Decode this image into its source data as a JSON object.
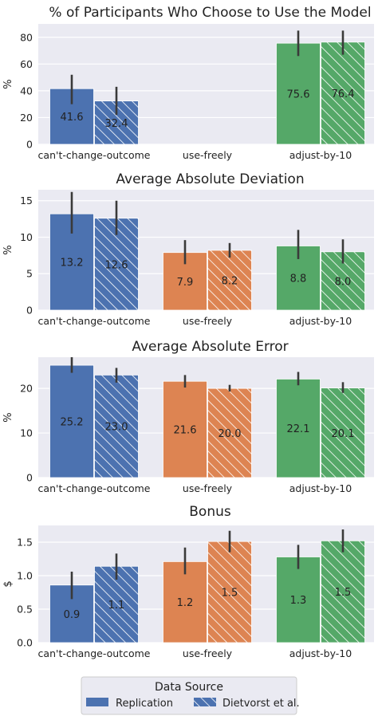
{
  "chart_data": [
    {
      "type": "bar",
      "title": "% of Participants Who Choose to Use the Model",
      "ylabel": "%",
      "ylim": [
        0,
        90
      ],
      "yticks": [
        "0",
        "20",
        "40",
        "60",
        "80"
      ],
      "ytick_values": [
        0,
        20,
        40,
        60,
        80
      ],
      "categories": [
        "can't-change-outcome",
        "use-freely",
        "adjust-by-10"
      ],
      "grid": true,
      "series": [
        {
          "name": "Replication",
          "values": [
            41.6,
            null,
            75.6
          ],
          "error": [
            [
              30,
              52
            ],
            null,
            [
              66,
              85
            ]
          ],
          "labels": [
            "41.6",
            "",
            "75.6"
          ]
        },
        {
          "name": "Dietvorst et al.",
          "values": [
            32.4,
            null,
            76.4
          ],
          "error": [
            [
              22,
              43
            ],
            null,
            [
              67,
              85
            ]
          ],
          "labels": [
            "32.4",
            "",
            "76.4"
          ]
        }
      ]
    },
    {
      "type": "bar",
      "title": "Average Absolute Deviation",
      "ylabel": "%",
      "ylim": [
        0,
        16.5
      ],
      "yticks": [
        "0",
        "5",
        "10",
        "15"
      ],
      "ytick_values": [
        0,
        5,
        10,
        15
      ],
      "categories": [
        "can't-change-outcome",
        "use-freely",
        "adjust-by-10"
      ],
      "grid": true,
      "series": [
        {
          "name": "Replication",
          "values": [
            13.2,
            7.9,
            8.8
          ],
          "error": [
            [
              10.5,
              16.2
            ],
            [
              6.3,
              9.6
            ],
            [
              7,
              11
            ]
          ],
          "labels": [
            "13.2",
            "7.9",
            "8.8"
          ]
        },
        {
          "name": "Dietvorst et al.",
          "values": [
            12.6,
            8.2,
            8.0
          ],
          "error": [
            [
              10.3,
              15
            ],
            [
              7.2,
              9.2
            ],
            [
              6.4,
              9.7
            ]
          ],
          "labels": [
            "12.6",
            "8.2",
            "8.0"
          ]
        }
      ]
    },
    {
      "type": "bar",
      "title": "Average Absolute Error",
      "ylabel": "%",
      "ylim": [
        0,
        27
      ],
      "yticks": [
        "0",
        "10",
        "20"
      ],
      "ytick_values": [
        0,
        10,
        20
      ],
      "categories": [
        "can't-change-outcome",
        "use-freely",
        "adjust-by-10"
      ],
      "grid": true,
      "series": [
        {
          "name": "Replication",
          "values": [
            25.2,
            21.6,
            22.1
          ],
          "error": [
            [
              23.5,
              27
            ],
            [
              20.2,
              23
            ],
            [
              20.7,
              23.7
            ]
          ],
          "labels": [
            "25.2",
            "21.6",
            "22.1"
          ]
        },
        {
          "name": "Dietvorst et al.",
          "values": [
            23.0,
            20.0,
            20.1
          ],
          "error": [
            [
              21.3,
              24.6
            ],
            [
              19.3,
              20.8
            ],
            [
              19,
              21.4
            ]
          ],
          "labels": [
            "23.0",
            "20.0",
            "20.1"
          ]
        }
      ]
    },
    {
      "type": "bar",
      "title": "Bonus",
      "ylabel": "$",
      "ylim": [
        0,
        1.75
      ],
      "yticks": [
        "0.0",
        "0.5",
        "1.0",
        "1.5"
      ],
      "ytick_values": [
        0,
        0.5,
        1.0,
        1.5
      ],
      "categories": [
        "can't-change-outcome",
        "use-freely",
        "adjust-by-10"
      ],
      "grid": true,
      "series": [
        {
          "name": "Replication",
          "values": [
            0.86,
            1.21,
            1.28
          ],
          "error": [
            [
              0.65,
              1.06
            ],
            [
              1.02,
              1.42
            ],
            [
              1.1,
              1.46
            ]
          ],
          "labels": [
            "0.9",
            "1.2",
            "1.3"
          ]
        },
        {
          "name": "Dietvorst et al.",
          "values": [
            1.14,
            1.51,
            1.52
          ],
          "error": [
            [
              0.94,
              1.33
            ],
            [
              1.35,
              1.67
            ],
            [
              1.35,
              1.69
            ]
          ],
          "labels": [
            "1.1",
            "1.5",
            "1.5"
          ]
        }
      ]
    }
  ],
  "legend": {
    "title": "Data Source",
    "placement": "bottom-center",
    "entries": [
      {
        "label": "Replication",
        "hatched": false
      },
      {
        "label": "Dietvorst et al.",
        "hatched": true
      }
    ]
  },
  "colors": {
    "can't-change-outcome": "#4c72b0",
    "use-freely": "#dd8452",
    "adjust-by-10": "#55a868",
    "panel_bg": "#eaeaf2",
    "grid": "#ffffff",
    "error_bar": "#3a3a3a"
  }
}
